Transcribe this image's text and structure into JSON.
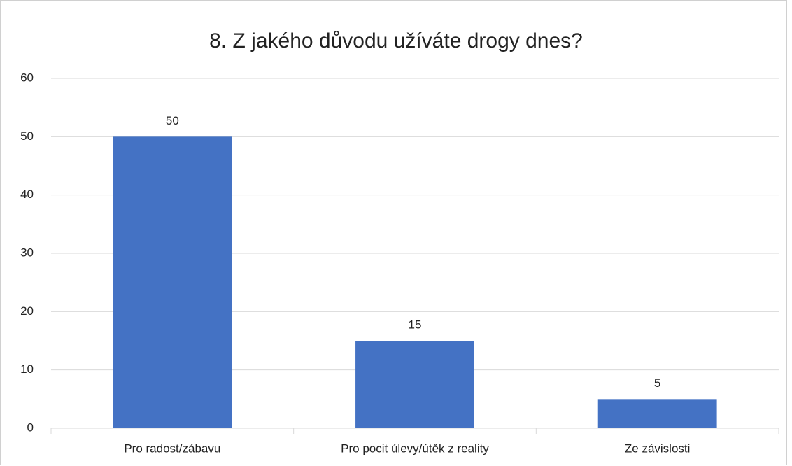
{
  "chart_data": {
    "type": "bar",
    "title": "8. Z jakého důvodu užíváte drogy dnes?",
    "categories": [
      "Pro radost/zábavu",
      "Pro pocit úlevy/útěk z reality",
      "Ze závislosti"
    ],
    "values": [
      50,
      15,
      5
    ],
    "color": "#4472c4",
    "ylim": [
      0,
      60
    ],
    "yticks": [
      0,
      10,
      20,
      30,
      40,
      50,
      60
    ],
    "grid": true
  }
}
